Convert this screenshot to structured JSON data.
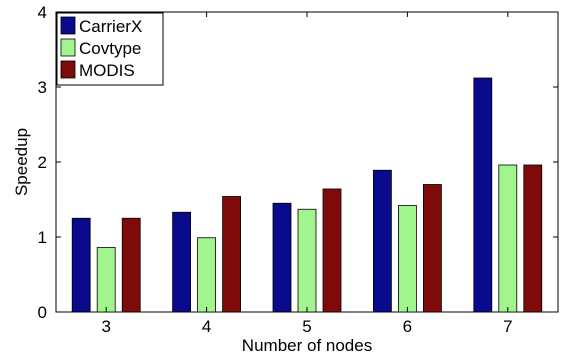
{
  "chart_data": {
    "type": "bar",
    "title": "",
    "xlabel": "Number of nodes",
    "ylabel": "Speedup",
    "categories": [
      "3",
      "4",
      "5",
      "6",
      "7"
    ],
    "ylim": [
      0,
      4
    ],
    "yticks": [
      "0",
      "1",
      "2",
      "3",
      "4"
    ],
    "grid": false,
    "legend_position": "top-left",
    "series": [
      {
        "name": "CarrierX",
        "color": "#0a0a8c",
        "values": [
          1.25,
          1.33,
          1.45,
          1.89,
          3.12
        ]
      },
      {
        "name": "Covtype",
        "color": "#a2f58e",
        "values": [
          0.86,
          0.99,
          1.37,
          1.42,
          1.96
        ]
      },
      {
        "name": "MODIS",
        "color": "#7f0a0a",
        "values": [
          1.25,
          1.54,
          1.64,
          1.7,
          1.96
        ]
      }
    ]
  }
}
